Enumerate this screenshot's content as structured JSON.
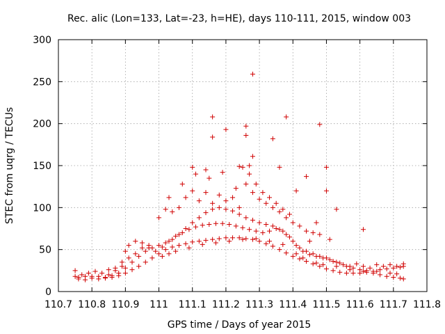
{
  "chart_data": {
    "type": "scatter",
    "title": "Rec. alic (Lon=133, Lat=-23, h=HE), days 110-111, 2015, window 003",
    "xlabel": "GPS time / Days of year 2015",
    "ylabel": "STEC from uqrg / TECUs",
    "xlim": [
      110.7,
      111.8
    ],
    "ylim": [
      0,
      300
    ],
    "x_ticks": [
      "110.7",
      "110.8",
      "110.9",
      "111",
      "111.1",
      "111.2",
      "111.3",
      "111.4",
      "111.5",
      "111.6",
      "111.7",
      "111.8"
    ],
    "y_ticks": [
      "0",
      "50",
      "100",
      "150",
      "200",
      "250",
      "300"
    ],
    "grid": true,
    "legend": "none",
    "marker": "+",
    "color": "#d00000",
    "points": [
      [
        110.75,
        18
      ],
      [
        110.76,
        17
      ],
      [
        110.78,
        18
      ],
      [
        110.8,
        18
      ],
      [
        110.82,
        18
      ],
      [
        110.84,
        17
      ],
      [
        110.86,
        17
      ],
      [
        110.88,
        19
      ],
      [
        110.9,
        22
      ],
      [
        110.92,
        26
      ],
      [
        110.94,
        30
      ],
      [
        110.96,
        35
      ],
      [
        110.98,
        40
      ],
      [
        111.0,
        45
      ],
      [
        111.02,
        50
      ],
      [
        111.04,
        53
      ],
      [
        111.06,
        55
      ],
      [
        111.08,
        57
      ],
      [
        111.1,
        59
      ],
      [
        111.12,
        60
      ],
      [
        111.14,
        61
      ],
      [
        111.16,
        62
      ],
      [
        111.18,
        63
      ],
      [
        111.2,
        64
      ],
      [
        111.22,
        64
      ],
      [
        111.24,
        64
      ],
      [
        111.26,
        63
      ],
      [
        111.28,
        62
      ],
      [
        111.3,
        60
      ],
      [
        111.32,
        57
      ],
      [
        111.34,
        54
      ],
      [
        111.36,
        50
      ],
      [
        111.38,
        46
      ],
      [
        111.4,
        42
      ],
      [
        111.42,
        39
      ],
      [
        111.44,
        36
      ],
      [
        111.46,
        33
      ],
      [
        111.48,
        30
      ],
      [
        111.5,
        27
      ],
      [
        111.52,
        25
      ],
      [
        111.54,
        23
      ],
      [
        111.56,
        22
      ],
      [
        111.58,
        22
      ],
      [
        111.6,
        22
      ],
      [
        111.62,
        23
      ],
      [
        111.64,
        24
      ],
      [
        111.66,
        26
      ],
      [
        111.68,
        27
      ],
      [
        111.7,
        28
      ],
      [
        111.72,
        29
      ],
      [
        111.73,
        30
      ],
      [
        110.75,
        25
      ],
      [
        110.77,
        20
      ],
      [
        110.79,
        22
      ],
      [
        110.81,
        24
      ],
      [
        110.83,
        22
      ],
      [
        110.85,
        20
      ],
      [
        110.87,
        25
      ],
      [
        110.89,
        35
      ],
      [
        110.9,
        48
      ],
      [
        110.91,
        55
      ],
      [
        110.93,
        60
      ],
      [
        110.95,
        58
      ],
      [
        110.97,
        52
      ],
      [
        110.99,
        48
      ],
      [
        111.01,
        53
      ],
      [
        111.03,
        60
      ],
      [
        111.05,
        66
      ],
      [
        111.07,
        70
      ],
      [
        111.09,
        74
      ],
      [
        111.11,
        77
      ],
      [
        111.13,
        79
      ],
      [
        111.15,
        80
      ],
      [
        111.17,
        81
      ],
      [
        111.19,
        81
      ],
      [
        111.21,
        80
      ],
      [
        111.23,
        78
      ],
      [
        111.25,
        76
      ],
      [
        111.27,
        74
      ],
      [
        111.29,
        72
      ],
      [
        111.31,
        70
      ],
      [
        111.33,
        72
      ],
      [
        111.35,
        75
      ],
      [
        111.37,
        72
      ],
      [
        111.39,
        65
      ],
      [
        111.41,
        55
      ],
      [
        111.43,
        48
      ],
      [
        111.45,
        44
      ],
      [
        111.47,
        42
      ],
      [
        111.49,
        40
      ],
      [
        111.51,
        38
      ],
      [
        111.53,
        35
      ],
      [
        111.55,
        32
      ],
      [
        111.57,
        30
      ],
      [
        111.59,
        33
      ],
      [
        111.61,
        30
      ],
      [
        111.63,
        28
      ],
      [
        111.65,
        32
      ],
      [
        111.67,
        30
      ],
      [
        111.69,
        32
      ],
      [
        111.71,
        30
      ],
      [
        111.73,
        33
      ],
      [
        110.76,
        15
      ],
      [
        110.78,
        14
      ],
      [
        110.8,
        16
      ],
      [
        110.82,
        15
      ],
      [
        110.84,
        16
      ],
      [
        110.86,
        19
      ],
      [
        110.88,
        22
      ],
      [
        110.9,
        28
      ],
      [
        110.92,
        35
      ],
      [
        110.94,
        42
      ],
      [
        110.96,
        48
      ],
      [
        110.98,
        52
      ],
      [
        111.0,
        55
      ],
      [
        111.02,
        58
      ],
      [
        111.04,
        62
      ],
      [
        111.06,
        68
      ],
      [
        111.08,
        75
      ],
      [
        111.1,
        82
      ],
      [
        111.12,
        88
      ],
      [
        111.14,
        94
      ],
      [
        111.16,
        98
      ],
      [
        111.18,
        100
      ],
      [
        111.2,
        98
      ],
      [
        111.22,
        96
      ],
      [
        111.24,
        92
      ],
      [
        111.26,
        88
      ],
      [
        111.28,
        85
      ],
      [
        111.3,
        82
      ],
      [
        111.32,
        80
      ],
      [
        111.34,
        78
      ],
      [
        111.36,
        74
      ],
      [
        111.38,
        68
      ],
      [
        111.4,
        60
      ],
      [
        111.42,
        52
      ],
      [
        111.44,
        48
      ],
      [
        111.46,
        45
      ],
      [
        111.48,
        42
      ],
      [
        111.5,
        40
      ],
      [
        111.52,
        36
      ],
      [
        111.54,
        34
      ],
      [
        111.56,
        30
      ],
      [
        111.58,
        28
      ],
      [
        111.6,
        26
      ],
      [
        111.62,
        25
      ],
      [
        111.64,
        22
      ],
      [
        111.66,
        20
      ],
      [
        111.68,
        18
      ],
      [
        111.7,
        17
      ],
      [
        111.72,
        16
      ],
      [
        111.73,
        15
      ],
      [
        111.0,
        88
      ],
      [
        111.02,
        98
      ],
      [
        111.04,
        95
      ],
      [
        111.06,
        100
      ],
      [
        111.08,
        112
      ],
      [
        111.1,
        120
      ],
      [
        111.12,
        108
      ],
      [
        111.14,
        118
      ],
      [
        111.16,
        105
      ],
      [
        111.18,
        115
      ],
      [
        111.2,
        108
      ],
      [
        111.22,
        112
      ],
      [
        111.24,
        100
      ],
      [
        111.26,
        128
      ],
      [
        111.28,
        118
      ],
      [
        111.3,
        110
      ],
      [
        111.32,
        105
      ],
      [
        111.34,
        100
      ],
      [
        111.36,
        95
      ],
      [
        111.38,
        88
      ],
      [
        111.4,
        82
      ],
      [
        111.42,
        78
      ],
      [
        111.44,
        72
      ],
      [
        111.46,
        70
      ],
      [
        111.48,
        68
      ],
      [
        111.03,
        112
      ],
      [
        111.07,
        128
      ],
      [
        111.11,
        140
      ],
      [
        111.15,
        135
      ],
      [
        111.19,
        142
      ],
      [
        111.23,
        123
      ],
      [
        111.25,
        148
      ],
      [
        111.27,
        140
      ],
      [
        111.29,
        128
      ],
      [
        111.31,
        118
      ],
      [
        111.33,
        112
      ],
      [
        111.35,
        105
      ],
      [
        111.37,
        98
      ],
      [
        111.39,
        92
      ],
      [
        111.41,
        120
      ],
      [
        111.45,
        60
      ],
      [
        111.47,
        82
      ],
      [
        111.51,
        62
      ],
      [
        111.53,
        98
      ],
      [
        111.1,
        148
      ],
      [
        111.14,
        145
      ],
      [
        111.16,
        184
      ],
      [
        111.16,
        208
      ],
      [
        111.2,
        193
      ],
      [
        111.24,
        149
      ],
      [
        111.26,
        197
      ],
      [
        111.26,
        186
      ],
      [
        111.27,
        150
      ],
      [
        111.28,
        161
      ],
      [
        111.28,
        259
      ],
      [
        111.34,
        182
      ],
      [
        111.36,
        148
      ],
      [
        111.38,
        208
      ],
      [
        111.44,
        137
      ],
      [
        111.48,
        199
      ],
      [
        111.5,
        148
      ],
      [
        111.5,
        120
      ],
      [
        111.61,
        74
      ],
      [
        110.85,
        26
      ],
      [
        110.87,
        28
      ],
      [
        110.89,
        30
      ],
      [
        110.91,
        40
      ],
      [
        110.93,
        45
      ],
      [
        110.95,
        52
      ],
      [
        110.97,
        55
      ],
      [
        111.01,
        42
      ],
      [
        111.03,
        45
      ],
      [
        111.05,
        48
      ],
      [
        111.09,
        52
      ],
      [
        111.13,
        56
      ],
      [
        111.17,
        58
      ],
      [
        111.21,
        60
      ],
      [
        111.25,
        62
      ],
      [
        111.29,
        63
      ],
      [
        111.33,
        60
      ],
      [
        111.37,
        56
      ],
      [
        111.41,
        45
      ],
      [
        111.43,
        40
      ],
      [
        111.47,
        34
      ],
      [
        111.49,
        32
      ],
      [
        111.53,
        30
      ],
      [
        111.57,
        26
      ],
      [
        111.61,
        24
      ],
      [
        111.65,
        24
      ],
      [
        111.69,
        22
      ],
      [
        111.71,
        21
      ]
    ]
  }
}
